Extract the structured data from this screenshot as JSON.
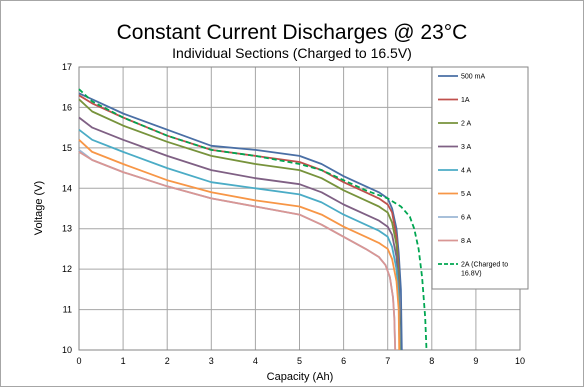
{
  "chart_data": {
    "type": "line",
    "title": "Constant Current Discharges @ 23°C",
    "subtitle": "Individual Sections (Charged to 16.5V)",
    "xlabel": "Capacity (Ah)",
    "ylabel": "Voltage (V)",
    "xlim": [
      0,
      10
    ],
    "ylim": [
      10,
      17
    ],
    "xticks": [
      "0",
      "1",
      "2",
      "3",
      "4",
      "5",
      "6",
      "7",
      "8",
      "9",
      "10"
    ],
    "yticks": [
      "10",
      "11",
      "12",
      "13",
      "14",
      "15",
      "16",
      "17"
    ],
    "grid": true,
    "legend_position": "right",
    "series": [
      {
        "name": "500 mA",
        "color": "#4a6fa5",
        "dash": false,
        "x": [
          0,
          0.3,
          1,
          2,
          3,
          4,
          5,
          5.5,
          6,
          6.5,
          6.8,
          7,
          7.1,
          7.2,
          7.25,
          7.3,
          7.32
        ],
        "y": [
          16.35,
          16.2,
          15.85,
          15.45,
          15.05,
          14.95,
          14.8,
          14.6,
          14.3,
          14.05,
          13.9,
          13.75,
          13.5,
          13.0,
          12.4,
          11.5,
          10.0
        ]
      },
      {
        "name": "1A",
        "color": "#c0504d",
        "dash": false,
        "x": [
          0,
          0.3,
          1,
          2,
          3,
          4,
          5,
          5.5,
          6,
          6.5,
          6.8,
          7,
          7.1,
          7.2,
          7.25,
          7.28
        ],
        "y": [
          16.3,
          16.1,
          15.75,
          15.3,
          14.95,
          14.8,
          14.65,
          14.45,
          14.15,
          13.9,
          13.75,
          13.6,
          13.4,
          12.8,
          12.0,
          10.0
        ]
      },
      {
        "name": "2 A",
        "color": "#77933c",
        "dash": false,
        "x": [
          0,
          0.3,
          1,
          2,
          3,
          4,
          5,
          5.5,
          6,
          6.5,
          6.8,
          7,
          7.1,
          7.2,
          7.25,
          7.28
        ],
        "y": [
          16.2,
          15.9,
          15.55,
          15.15,
          14.8,
          14.6,
          14.45,
          14.25,
          13.95,
          13.7,
          13.55,
          13.4,
          13.15,
          12.6,
          11.8,
          10.0
        ]
      },
      {
        "name": "3 A",
        "color": "#7f6084",
        "dash": false,
        "x": [
          0,
          0.3,
          1,
          2,
          3,
          4,
          5,
          5.5,
          6,
          6.5,
          6.8,
          7,
          7.1,
          7.2,
          7.25,
          7.27
        ],
        "y": [
          15.75,
          15.5,
          15.2,
          14.8,
          14.45,
          14.25,
          14.1,
          13.9,
          13.6,
          13.35,
          13.2,
          13.05,
          12.85,
          12.3,
          11.5,
          10.0
        ]
      },
      {
        "name": "4 A",
        "color": "#4bacc6",
        "dash": false,
        "x": [
          0,
          0.3,
          1,
          2,
          3,
          4,
          5,
          5.5,
          6,
          6.5,
          6.8,
          7,
          7.1,
          7.2,
          7.25,
          7.27
        ],
        "y": [
          15.45,
          15.2,
          14.9,
          14.5,
          14.15,
          14.0,
          13.85,
          13.65,
          13.35,
          13.1,
          12.95,
          12.8,
          12.55,
          12.0,
          11.3,
          10.0
        ]
      },
      {
        "name": "5 A",
        "color": "#f79646",
        "dash": false,
        "x": [
          0,
          0.3,
          1,
          2,
          3,
          4,
          5,
          5.5,
          6,
          6.5,
          6.8,
          7,
          7.1,
          7.2,
          7.25,
          7.26
        ],
        "y": [
          15.2,
          14.9,
          14.6,
          14.2,
          13.9,
          13.7,
          13.55,
          13.35,
          13.05,
          12.8,
          12.65,
          12.5,
          12.25,
          11.7,
          11.0,
          10.0
        ]
      },
      {
        "name": "6 A",
        "color": "#9bb7d4",
        "dash": false,
        "x": [
          0,
          0.3,
          1,
          2,
          3,
          4,
          5,
          5.5,
          6,
          6.5,
          6.8,
          6.95,
          7.05,
          7.12,
          7.15,
          7.17
        ],
        "y": [
          14.95,
          14.7,
          14.4,
          14.05,
          13.75,
          13.55,
          13.35,
          13.1,
          12.8,
          12.5,
          12.3,
          12.1,
          11.8,
          11.3,
          10.8,
          10.0
        ]
      },
      {
        "name": "8 A",
        "color": "#d99694",
        "dash": false,
        "x": [
          0,
          0.3,
          1,
          2,
          3,
          4,
          5,
          5.5,
          6,
          6.5,
          6.8,
          6.95,
          7.05,
          7.12,
          7.15,
          7.17
        ],
        "y": [
          14.9,
          14.7,
          14.4,
          14.05,
          13.75,
          13.55,
          13.35,
          13.1,
          12.8,
          12.5,
          12.3,
          12.1,
          11.8,
          11.3,
          10.8,
          10.0
        ]
      },
      {
        "name": "2A (Charged to 16.8V)",
        "color": "#00a651",
        "dash": true,
        "x": [
          0,
          0.3,
          1,
          2,
          3,
          4,
          5,
          5.5,
          6,
          6.5,
          7,
          7.3,
          7.5,
          7.6,
          7.7,
          7.78,
          7.85,
          7.88
        ],
        "y": [
          16.45,
          16.15,
          15.75,
          15.3,
          14.95,
          14.8,
          14.6,
          14.45,
          14.2,
          13.95,
          13.75,
          13.55,
          13.3,
          13.0,
          12.5,
          11.8,
          10.8,
          10.0
        ]
      }
    ]
  }
}
